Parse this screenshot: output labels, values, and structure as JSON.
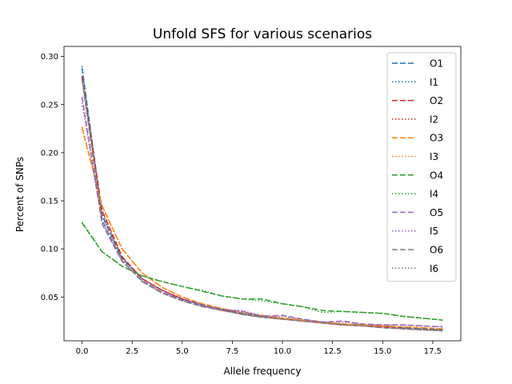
{
  "chart_data": {
    "type": "line",
    "title": "Unfold SFS for various scenarios",
    "xlabel": "Allele frequency",
    "ylabel": "Percent of SNPs",
    "xlim": [
      -0.9,
      18.9
    ],
    "ylim": [
      0.0045,
      0.3105
    ],
    "xticks": [
      0.0,
      2.5,
      5.0,
      7.5,
      10.0,
      12.5,
      15.0,
      17.5
    ],
    "xtick_labels": [
      "0.0",
      "2.5",
      "5.0",
      "7.5",
      "10.0",
      "12.5",
      "15.0",
      "17.5"
    ],
    "yticks": [
      0.05,
      0.1,
      0.15,
      0.2,
      0.25,
      0.3
    ],
    "ytick_labels": [
      "0.05",
      "0.10",
      "0.15",
      "0.20",
      "0.25",
      "0.30"
    ],
    "grid": false,
    "legend_position": "upper-right",
    "x": [
      0,
      1,
      2,
      3,
      4,
      5,
      6,
      7,
      8,
      9,
      10,
      11,
      12,
      13,
      14,
      15,
      16,
      17,
      18
    ],
    "series": [
      {
        "name": "O1",
        "color": "#1f77b4",
        "dash": "dashed",
        "values": [
          0.288,
          0.135,
          0.09,
          0.069,
          0.057,
          0.048,
          0.042,
          0.037,
          0.033,
          0.03,
          0.028,
          0.026,
          0.024,
          0.022,
          0.021,
          0.02,
          0.018,
          0.017,
          0.016
        ]
      },
      {
        "name": "I1",
        "color": "#1f77b4",
        "dash": "dotted",
        "values": [
          0.29,
          0.134,
          0.09,
          0.069,
          0.057,
          0.048,
          0.042,
          0.037,
          0.033,
          0.03,
          0.028,
          0.026,
          0.024,
          0.022,
          0.021,
          0.02,
          0.018,
          0.017,
          0.016
        ]
      },
      {
        "name": "O2",
        "color": "#d62728",
        "dash": "dashed",
        "values": [
          0.278,
          0.14,
          0.092,
          0.069,
          0.057,
          0.048,
          0.041,
          0.037,
          0.032,
          0.029,
          0.027,
          0.025,
          0.023,
          0.021,
          0.02,
          0.019,
          0.017,
          0.016,
          0.015
        ]
      },
      {
        "name": "I2",
        "color": "#d62728",
        "dash": "dotted",
        "values": [
          0.28,
          0.138,
          0.091,
          0.069,
          0.057,
          0.048,
          0.041,
          0.036,
          0.032,
          0.029,
          0.027,
          0.025,
          0.023,
          0.021,
          0.02,
          0.019,
          0.017,
          0.016,
          0.015
        ]
      },
      {
        "name": "O3",
        "color": "#ff7f0e",
        "dash": "dashed",
        "values": [
          0.226,
          0.145,
          0.1,
          0.075,
          0.06,
          0.05,
          0.043,
          0.038,
          0.034,
          0.031,
          0.028,
          0.026,
          0.024,
          0.022,
          0.021,
          0.02,
          0.019,
          0.018,
          0.017
        ]
      },
      {
        "name": "I3",
        "color": "#ff7f0e",
        "dash": "dotted",
        "values": [
          0.227,
          0.144,
          0.1,
          0.075,
          0.06,
          0.05,
          0.043,
          0.038,
          0.034,
          0.031,
          0.028,
          0.026,
          0.024,
          0.022,
          0.021,
          0.02,
          0.019,
          0.018,
          0.017
        ]
      },
      {
        "name": "O4",
        "color": "#2ca02c",
        "dash": "dashed",
        "values": [
          0.127,
          0.097,
          0.082,
          0.072,
          0.066,
          0.061,
          0.056,
          0.051,
          0.048,
          0.048,
          0.043,
          0.04,
          0.036,
          0.035,
          0.034,
          0.033,
          0.03,
          0.028,
          0.026
        ]
      },
      {
        "name": "I4",
        "color": "#2ca02c",
        "dash": "dotted",
        "values": [
          0.128,
          0.097,
          0.082,
          0.072,
          0.066,
          0.061,
          0.057,
          0.051,
          0.048,
          0.046,
          0.043,
          0.04,
          0.034,
          0.035,
          0.034,
          0.033,
          0.03,
          0.028,
          0.026
        ]
      },
      {
        "name": "O5",
        "color": "#9467bd",
        "dash": "dashed",
        "values": [
          0.258,
          0.126,
          0.087,
          0.067,
          0.055,
          0.047,
          0.041,
          0.037,
          0.035,
          0.03,
          0.031,
          0.027,
          0.024,
          0.025,
          0.022,
          0.021,
          0.021,
          0.02,
          0.019
        ]
      },
      {
        "name": "I5",
        "color": "#9467bd",
        "dash": "dotted",
        "values": [
          0.252,
          0.128,
          0.087,
          0.067,
          0.055,
          0.047,
          0.041,
          0.037,
          0.036,
          0.03,
          0.03,
          0.027,
          0.024,
          0.024,
          0.022,
          0.021,
          0.021,
          0.02,
          0.019
        ]
      },
      {
        "name": "O6",
        "color": "#7f7f7f",
        "dash": "dashed",
        "values": [
          0.276,
          0.13,
          0.088,
          0.066,
          0.054,
          0.046,
          0.04,
          0.036,
          0.032,
          0.029,
          0.027,
          0.025,
          0.023,
          0.021,
          0.02,
          0.018,
          0.017,
          0.016,
          0.015
        ]
      },
      {
        "name": "I6",
        "color": "#7f7f7f",
        "dash": "dotted",
        "values": [
          0.279,
          0.129,
          0.088,
          0.066,
          0.054,
          0.046,
          0.04,
          0.036,
          0.032,
          0.029,
          0.027,
          0.025,
          0.023,
          0.021,
          0.02,
          0.018,
          0.017,
          0.016,
          0.015
        ]
      }
    ]
  }
}
